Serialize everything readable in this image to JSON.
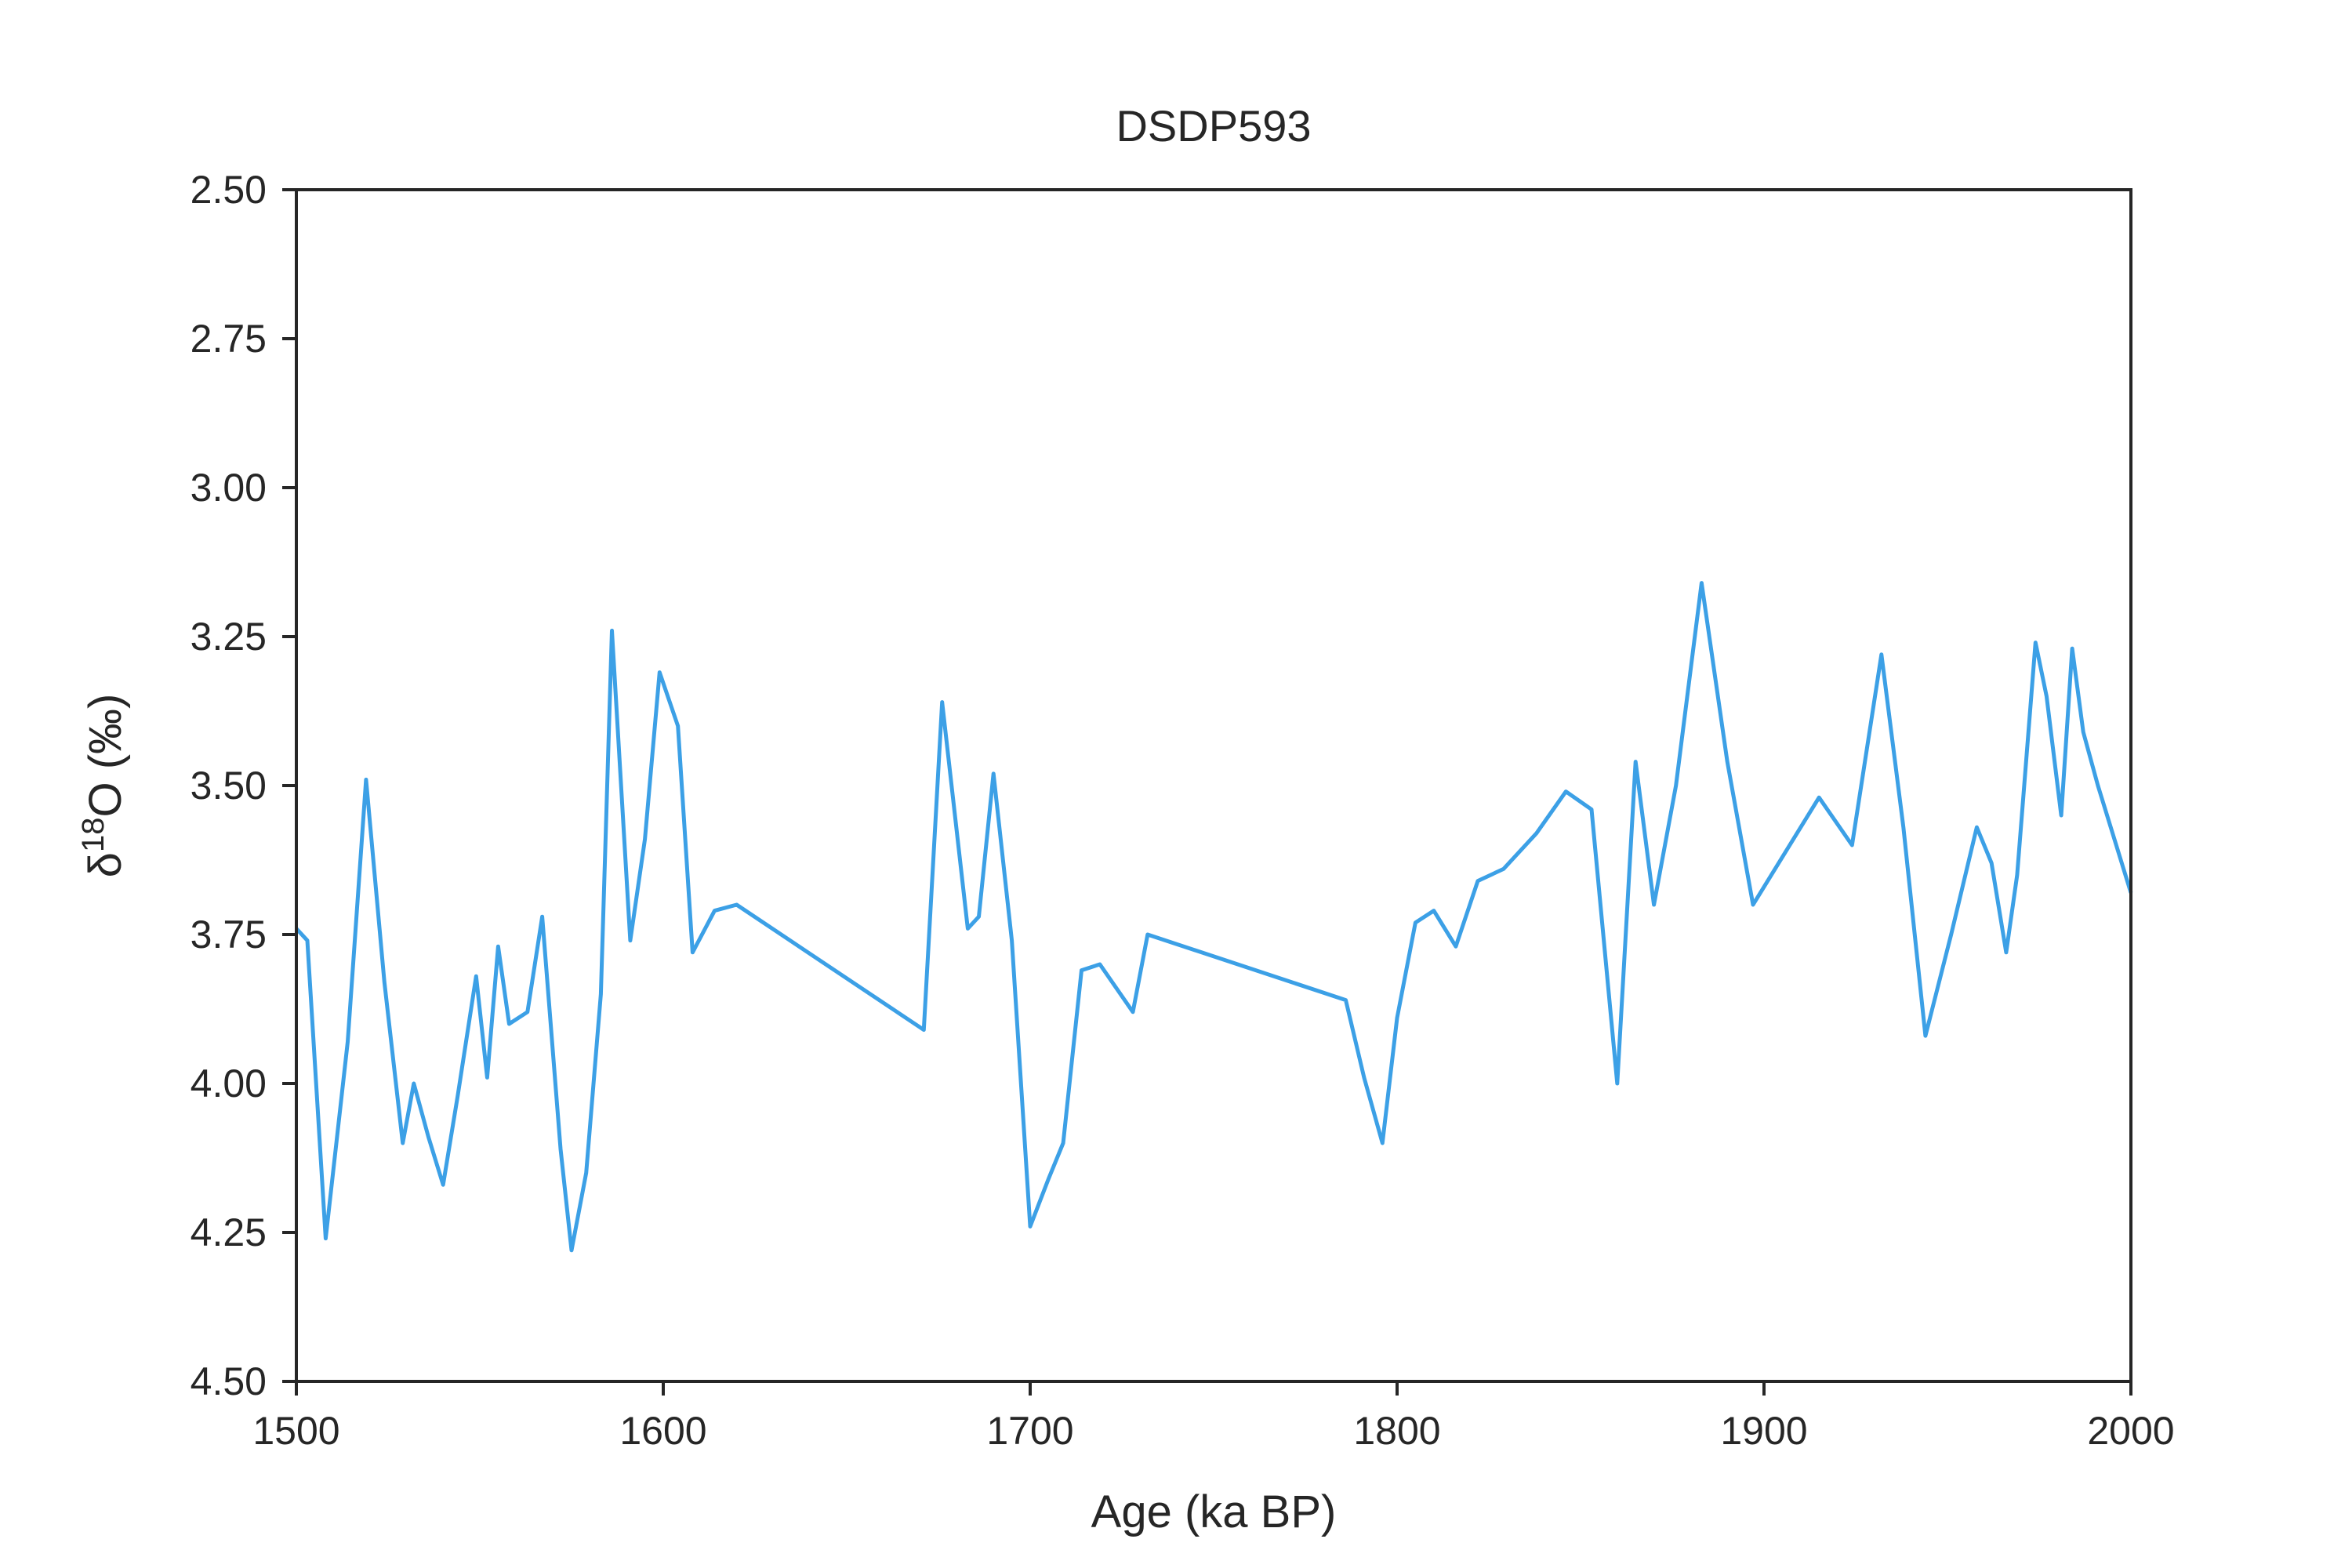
{
  "chart_data": {
    "type": "line",
    "title": "DSDP593",
    "xlabel": "Age (ka BP)",
    "ylabel": "δ18O (‰)",
    "xlim": [
      1500,
      2000
    ],
    "ylim": [
      2.5,
      4.5
    ],
    "y_inverted": true,
    "grid": false,
    "line_color": "#3ca0e6",
    "x_ticks": [
      "1500",
      "1600",
      "1700",
      "1800",
      "1900",
      "2000"
    ],
    "y_ticks": [
      "2.50",
      "2.75",
      "3.00",
      "3.25",
      "3.50",
      "3.75",
      "4.00",
      "4.25",
      "4.50"
    ],
    "series": [
      {
        "x": [
          1500,
          1503,
          1508,
          1514,
          1519,
          1524,
          1529,
          1532,
          1536,
          1540,
          1544,
          1549,
          1552,
          1555,
          1558,
          1563,
          1567,
          1572,
          1575,
          1579,
          1583,
          1586,
          1591,
          1595,
          1599,
          1604,
          1608,
          1614,
          1620,
          1671,
          1676,
          1683,
          1686,
          1690,
          1695,
          1700,
          1705,
          1709,
          1714,
          1719,
          1728,
          1732,
          1786,
          1791,
          1796,
          1800,
          1805,
          1810,
          1816,
          1822,
          1829,
          1838,
          1846,
          1853,
          1860,
          1865,
          1870,
          1876,
          1883,
          1890,
          1897,
          1915,
          1924,
          1932,
          1938,
          1944,
          1951,
          1958,
          1962,
          1966,
          1969,
          1974,
          1977,
          1981,
          1984,
          1987,
          1991,
          2000
        ],
        "y": [
          3.74,
          3.76,
          4.26,
          3.93,
          3.49,
          3.83,
          4.1,
          4.0,
          4.09,
          4.17,
          4.02,
          3.82,
          3.99,
          3.77,
          3.9,
          3.88,
          3.72,
          4.11,
          4.28,
          4.15,
          3.85,
          3.24,
          3.76,
          3.59,
          3.31,
          3.4,
          3.78,
          3.71,
          3.7,
          3.91,
          3.36,
          3.74,
          3.72,
          3.48,
          3.76,
          4.24,
          4.16,
          4.1,
          3.81,
          3.8,
          3.88,
          3.75,
          3.86,
          3.99,
          4.1,
          3.89,
          3.73,
          3.71,
          3.77,
          3.66,
          3.64,
          3.58,
          3.51,
          3.54,
          4.0,
          3.46,
          3.7,
          3.5,
          3.16,
          3.46,
          3.7,
          3.52,
          3.6,
          3.28,
          3.57,
          3.92,
          3.75,
          3.57,
          3.63,
          3.78,
          3.65,
          3.26,
          3.35,
          3.55,
          3.27,
          3.41,
          3.5,
          3.68
        ]
      }
    ]
  }
}
